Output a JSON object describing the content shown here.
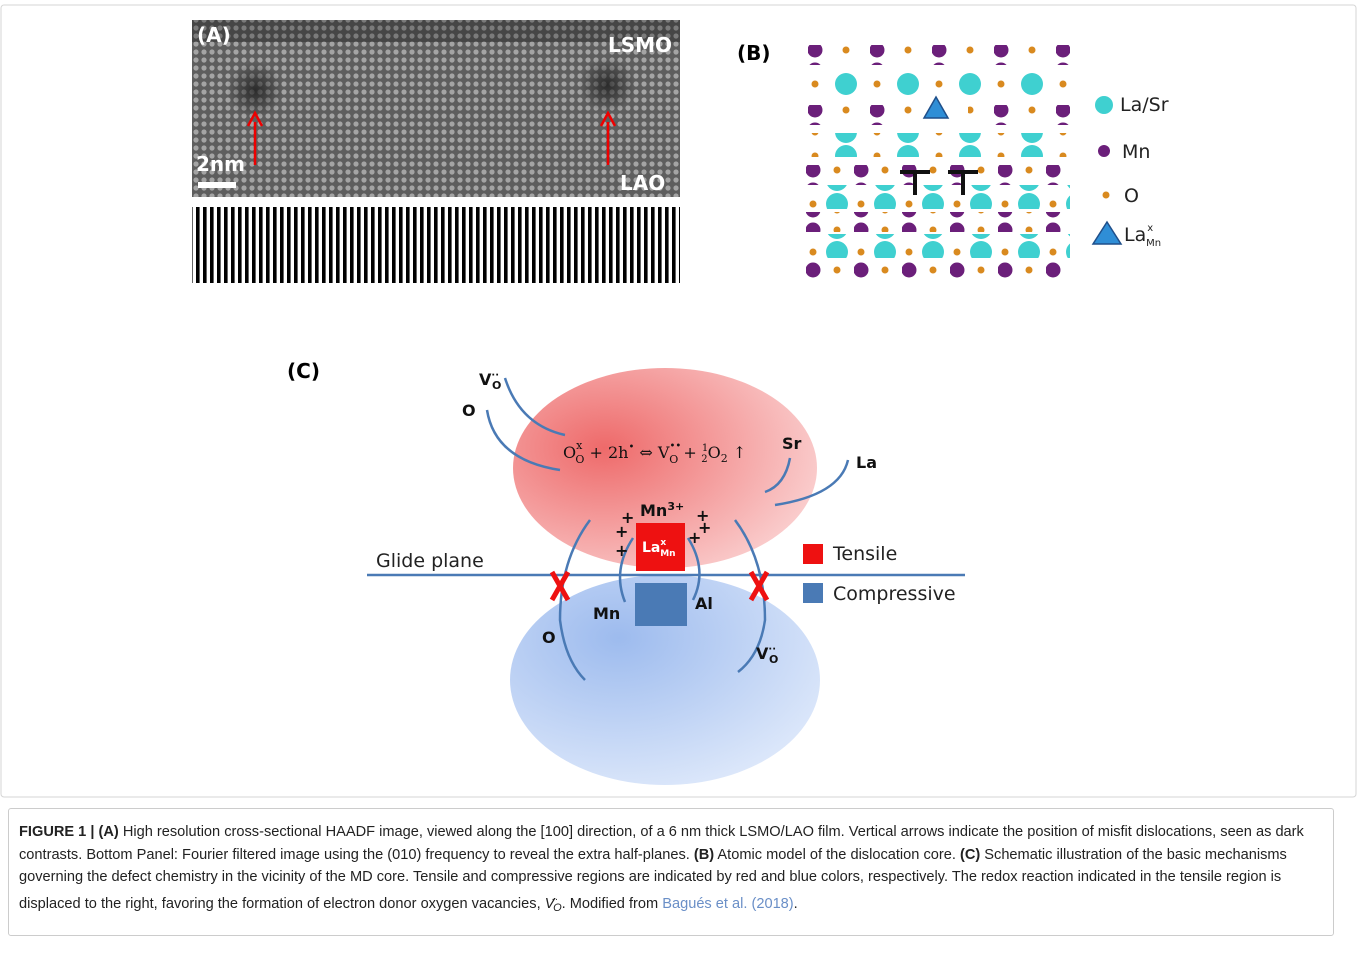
{
  "panel_a": {
    "label": "(A)",
    "top_label": "LSMO",
    "bottom_label": "LAO",
    "scale": "2nm"
  },
  "panel_b": {
    "label": "(B)",
    "legend": [
      {
        "text": "La/Sr"
      },
      {
        "text": "Mn"
      },
      {
        "text": "O"
      }
    ],
    "defect": {
      "base": "La",
      "sup": "x",
      "sub": "Mn"
    }
  },
  "panel_c": {
    "label": "(C)",
    "equation": {
      "o": "O",
      "o_sup": "x",
      "o_sub": "O",
      "holes": " + 2h",
      "holes_sup": "•",
      "arrow": " ⇔ V",
      "v_sup": "••",
      "v_sub": "O",
      "plus": " + ",
      "num": "1",
      "den": "2",
      "o2": "O",
      "o2_sub": "2",
      "up": " ↑"
    },
    "vacancy_top": {
      "base": "V",
      "sup": "··",
      "sub": "O"
    },
    "o_top": "O",
    "sr": "Sr",
    "la": "La",
    "mn3": {
      "base": "Mn",
      "sup": "3+"
    },
    "plus_signs": [
      "+",
      "+",
      "+",
      "+",
      "+",
      "+"
    ],
    "defect": {
      "base": "La",
      "sup": "x",
      "sub": "Mn"
    },
    "glide_plane": "Glide plane",
    "mn": "Mn",
    "al": "Al",
    "o_bottom": "O",
    "vacancy_bottom": {
      "base": "V",
      "sup": "··",
      "sub": "O"
    },
    "legend": {
      "tensile": "Tensile",
      "compressive": "Compressive"
    }
  },
  "caption": {
    "figure": "FIGURE 1 | ",
    "a_label": "(A)",
    "a_text": " High resolution cross-sectional HAADF image, viewed along the [100] direction, of a 6 nm thick LSMO/LAO film. Vertical arrows indicate the position of misfit dislocations, seen as dark contrasts. Bottom Panel: Fourier filtered image using the (010) frequency to reveal the extra half-planes. ",
    "b_label": "(B)",
    "b_text": " Atomic model of the dislocation core. ",
    "c_label": "(C)",
    "c_text": " Schematic illustration of the basic mechanisms governing the defect chemistry in the vicinity of the MD core. Tensile and compressive regions are indicated by red and blue colors, respectively. The redox reaction indicated in the tensile region is displaced to the right, favoring the formation of electron donor oxygen vacancies, ",
    "symbol_base": "V",
    "symbol_sup": "··",
    "symbol_sub": "O",
    "modified": ". Modified from ",
    "reference": "Bagués et al. (2018)",
    "end": "."
  }
}
